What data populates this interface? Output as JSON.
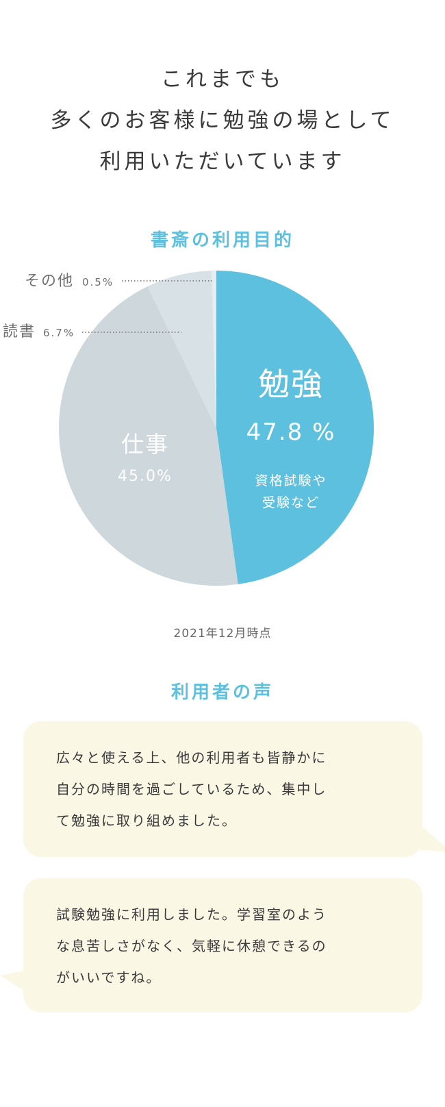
{
  "headline": {
    "lines": [
      "これまでも",
      "多くのお客様に勉強の場として",
      "利用いただいています"
    ]
  },
  "chart_section": {
    "title": "書斎の利用目的",
    "as_of": "2021年12月時点"
  },
  "chart_data": {
    "type": "pie",
    "title": "書斎の利用目的",
    "unit": "%",
    "slices": [
      {
        "label": "勉強",
        "value": 47.8,
        "value_text": "47.8 %",
        "note_lines": [
          "資格試験や",
          "受験など"
        ],
        "color": "#5ec0df"
      },
      {
        "label": "仕事",
        "value": 45.0,
        "value_text": "45.0%",
        "color": "#cdd7dc"
      },
      {
        "label": "読書",
        "value": 6.7,
        "value_text": "6.7%",
        "color": "#d8e1e6"
      },
      {
        "label": "その他",
        "value": 0.5,
        "value_text": "0.5%",
        "color": "#e6ecef"
      }
    ]
  },
  "voices": {
    "title": "利用者の声",
    "items": [
      {
        "lines": [
          "広々と使える上、他の利用者も皆静かに",
          "自分の時間を過ごしているため、集中し",
          "て勉強に取り組めました。"
        ],
        "tail_side": "right"
      },
      {
        "lines": [
          "試験勉強に利用しました。学習室のよう",
          "な息苦しさがなく、気軽に休憩できるの",
          "がいいですね。"
        ],
        "tail_side": "left"
      }
    ]
  }
}
